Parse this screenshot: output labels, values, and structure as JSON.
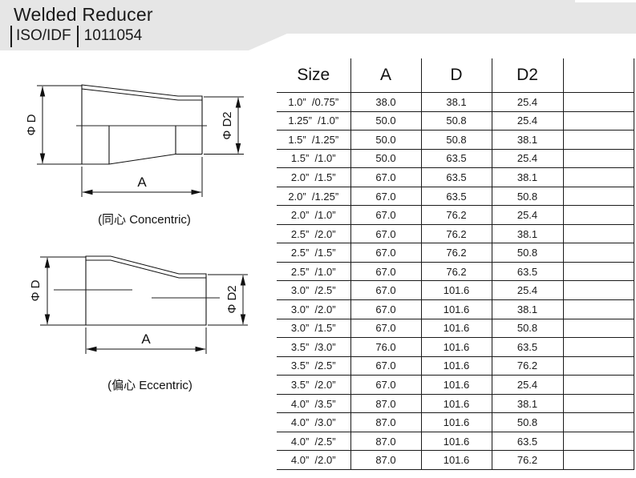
{
  "header": {
    "title": "Welded Reducer",
    "standard_label": "ISO/IDF",
    "standard_code": "1011054",
    "banner_color": "#e6e6e6"
  },
  "diagrams": {
    "concentric": {
      "caption": "(同心 Concentric)",
      "dim_large_diameter": "Φ D",
      "dim_small_diameter": "Φ D2",
      "dim_length": "A"
    },
    "eccentric": {
      "caption": "(偏心 Eccentric)",
      "dim_large_diameter": "Φ D",
      "dim_small_diameter": "Φ D2",
      "dim_length": "A"
    }
  },
  "table": {
    "columns": [
      "Size",
      "A",
      "D",
      "D2",
      ""
    ],
    "rows": [
      [
        "1.0”  /0.75”",
        "38.0",
        "38.1",
        "25.4",
        ""
      ],
      [
        "1.25”  /1.0”",
        "50.0",
        "50.8",
        "25.4",
        ""
      ],
      [
        "1.5”  /1.25”",
        "50.0",
        "50.8",
        "38.1",
        ""
      ],
      [
        "1.5”  /1.0”",
        "50.0",
        "63.5",
        "25.4",
        ""
      ],
      [
        "2.0”  /1.5”",
        "67.0",
        "63.5",
        "38.1",
        ""
      ],
      [
        "2.0”  /1.25”",
        "67.0",
        "63.5",
        "50.8",
        ""
      ],
      [
        "2.0”  /1.0”",
        "67.0",
        "76.2",
        "25.4",
        ""
      ],
      [
        "2.5”  /2.0”",
        "67.0",
        "76.2",
        "38.1",
        ""
      ],
      [
        "2.5”  /1.5”",
        "67.0",
        "76.2",
        "50.8",
        ""
      ],
      [
        "2.5”  /1.0”",
        "67.0",
        "76.2",
        "63.5",
        ""
      ],
      [
        "3.0”  /2.5”",
        "67.0",
        "101.6",
        "25.4",
        ""
      ],
      [
        "3.0”  /2.0”",
        "67.0",
        "101.6",
        "38.1",
        ""
      ],
      [
        "3.0”  /1.5”",
        "67.0",
        "101.6",
        "50.8",
        ""
      ],
      [
        "3.5”  /3.0”",
        "76.0",
        "101.6",
        "63.5",
        ""
      ],
      [
        "3.5”  /2.5”",
        "67.0",
        "101.6",
        "76.2",
        ""
      ],
      [
        "3.5”  /2.0”",
        "67.0",
        "101.6",
        "25.4",
        ""
      ],
      [
        "4.0”  /3.5”",
        "87.0",
        "101.6",
        "38.1",
        ""
      ],
      [
        "4.0”  /3.0”",
        "87.0",
        "101.6",
        "50.8",
        ""
      ],
      [
        "4.0”  /2.5”",
        "87.0",
        "101.6",
        "63.5",
        ""
      ],
      [
        "4.0”  /2.0”",
        "87.0",
        "101.6",
        "76.2",
        ""
      ]
    ]
  }
}
